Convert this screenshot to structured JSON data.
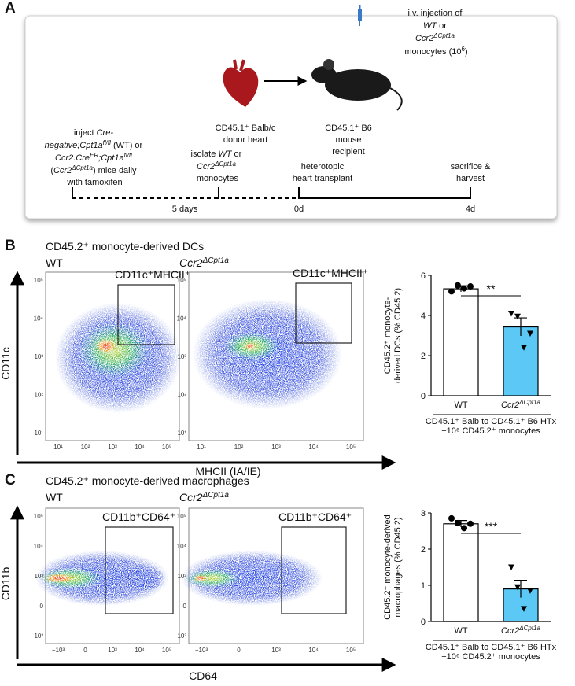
{
  "panel_a": {
    "label": "A",
    "injection": [
      [
        "i.v. injection of"
      ],
      [
        "WT",
        " or"
      ],
      [
        "Ccr2",
        "ΔCpt1a"
      ],
      [
        "monocytes (10",
        "6",
        ")"
      ]
    ],
    "donor": [
      "CD45.1⁺ Balb/c",
      "donor heart"
    ],
    "recipient": [
      "CD45.1⁺ B6",
      "mouse",
      "recipient"
    ],
    "treatment": [
      [
        "inject ",
        "Cre-"
      ],
      [
        "negative;Cpt1a",
        "fl/fl",
        " (WT) or"
      ],
      [
        "Ccr2.Cre",
        "ER",
        ";Cpt1a",
        "fl/fl"
      ],
      [
        "(",
        "Ccr2",
        "ΔCpt1a",
        ") mice daily"
      ],
      [
        "with tamoxifen"
      ]
    ],
    "isolate": [
      [
        "isolate ",
        "WT",
        " or"
      ],
      [
        "Ccr2",
        "ΔCpt1a"
      ],
      [
        "monocytes"
      ]
    ],
    "transplant": [
      "heterotopic",
      "heart transplant"
    ],
    "harvest": [
      "sacrifice &",
      "harvest"
    ],
    "timeline": [
      "5 days",
      "0d",
      "4d"
    ]
  },
  "panel_b": {
    "label": "B",
    "title": "CD45.2⁺ monocyte-derived DCs",
    "wt": "WT",
    "ko": [
      "Ccr2",
      "ΔCpt1a"
    ],
    "gate_label": "CD11c⁺MHCII⁺",
    "y_axis": "CD11c",
    "x_axis": "MHCII (IA/IE)",
    "y_ticks": [
      "10⁵",
      "10⁴",
      "10³",
      "10²",
      "10¹"
    ],
    "x_ticks": [
      "10¹",
      "10²",
      "10³",
      "10⁴",
      "10⁵"
    ]
  },
  "panel_c": {
    "label": "C",
    "title": "CD45.2⁺ monocyte-derived macrophages",
    "wt": "WT",
    "ko": [
      "Ccr2",
      "ΔCpt1a"
    ],
    "gate_label": "CD11b⁺CD64⁺",
    "y_axis": "CD11b",
    "x_axis": "CD64",
    "y_ticks": [
      "10⁵",
      "10⁴",
      "10³",
      "0",
      "−10³"
    ],
    "x_ticks": [
      "−10³",
      "0",
      "10³",
      "10⁴",
      "10⁵"
    ]
  },
  "chart_data": [
    {
      "type": "bar",
      "ylabel": [
        "CD45.2⁺ monocyte-",
        "derived DCs (% CD45.2)"
      ],
      "categories": [
        "WT",
        "Ccr2"
      ],
      "category_superscripts": {
        "1": "ΔCpt1a"
      },
      "values": [
        5.33,
        3.43
      ],
      "errors": [
        0.15,
        0.45
      ],
      "points": [
        [
          5.2,
          5.5,
          5.35,
          5.45
        ],
        [
          4.1,
          3.95,
          2.4,
          3.1
        ]
      ],
      "markers": [
        "circle",
        "triangle"
      ],
      "colors": [
        "#ffffff",
        "#5bc8f5"
      ],
      "ylim": [
        0,
        6
      ],
      "yticks": [
        0,
        2,
        4,
        6
      ],
      "significance": "**",
      "group_label": [
        "CD45.1⁺ Balb to CD45.1⁺ B6 HTx",
        "+10⁶ CD45.2⁺ monocytes"
      ]
    },
    {
      "type": "bar",
      "ylabel": [
        "CD45.2⁺ monocyte-derived",
        "macrophages (% CD45.2)"
      ],
      "categories": [
        "WT",
        "Ccr2"
      ],
      "category_superscripts": {
        "1": "ΔCpt1a"
      },
      "values": [
        2.7,
        0.9
      ],
      "errors": [
        0.09,
        0.24
      ],
      "points": [
        [
          2.85,
          2.72,
          2.58,
          2.7
        ],
        [
          1.5,
          0.95,
          0.35,
          0.85
        ]
      ],
      "markers": [
        "circle",
        "triangle"
      ],
      "colors": [
        "#ffffff",
        "#5bc8f5"
      ],
      "ylim": [
        0,
        3
      ],
      "yticks": [
        0,
        1,
        2,
        3
      ],
      "significance": "***",
      "group_label": [
        "CD45.1⁺ Balb to CD45.1⁺ B6 HTx",
        "+10⁶ CD45.2⁺ monocytes"
      ]
    }
  ]
}
